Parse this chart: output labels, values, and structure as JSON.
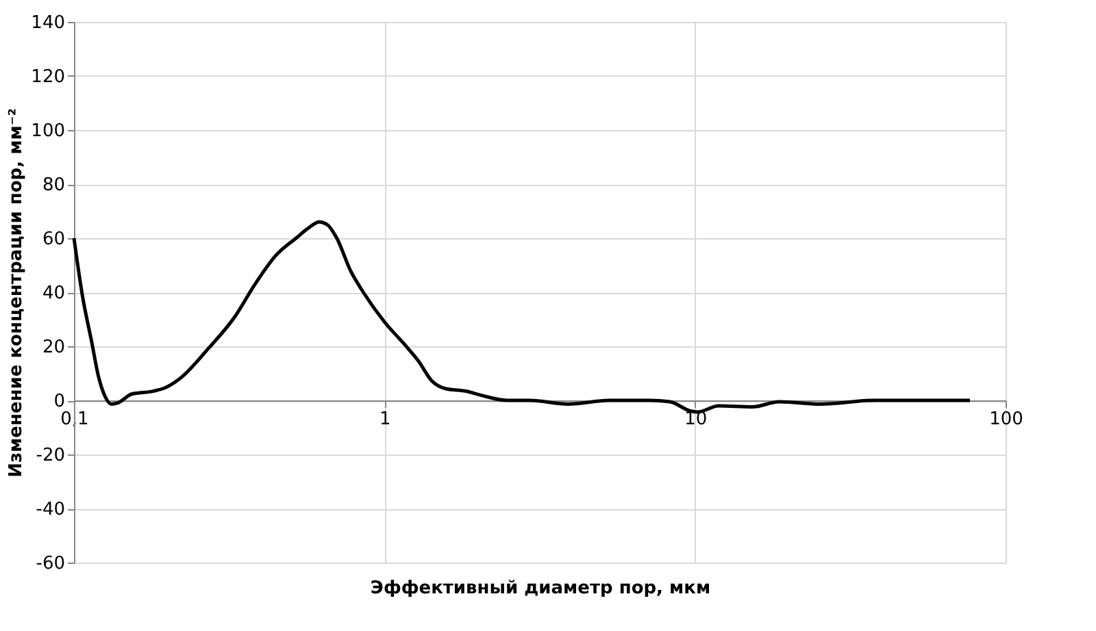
{
  "chart_data": {
    "type": "line",
    "xlabel": "Эффективный  диаметр пор, мкм",
    "ylabel": "Изменение концентрации  пор, мм⁻²",
    "log": "x",
    "grid": true,
    "marker": "none",
    "line_style": "solid",
    "xlim": [
      0.1,
      100
    ],
    "xticks": [
      {
        "value": 0.1,
        "label": "0,1"
      },
      1,
      10,
      100
    ],
    "ylim": [
      -60,
      140
    ],
    "yticks": [
      -60,
      -40,
      -20,
      0,
      20,
      40,
      60,
      80,
      100,
      120,
      140
    ],
    "x": [
      0.1,
      0.1065,
      0.114,
      0.12,
      0.126,
      0.132,
      0.138,
      0.154,
      0.18,
      0.198,
      0.22,
      0.27,
      0.33,
      0.383,
      0.446,
      0.519,
      0.573,
      0.616,
      0.654,
      0.702,
      0.777,
      0.86,
      1,
      1.16,
      1.287,
      1.42,
      1.575,
      1.83,
      2.03,
      2.48,
      2.94,
      3.9,
      5.3,
      7.1,
      8.3,
      9.7,
      10.2,
      11.9,
      15.3,
      18.7,
      25.3,
      37.9,
      76.8
    ],
    "series": [
      {
        "color": "#000000",
        "values": [
          60,
          38.6,
          21.7,
          8.7,
          1.4,
          -1.4,
          -1,
          2.4,
          3.4,
          4.8,
          8.2,
          19,
          31,
          43,
          53.5,
          60,
          64,
          66,
          65,
          60,
          48,
          39.5,
          29,
          20.7,
          14.5,
          7.2,
          4.3,
          3.4,
          2,
          0,
          0,
          -1.4,
          0,
          0,
          -0.5,
          -4,
          -4.3,
          -2,
          -2.4,
          -0.5,
          -1.4,
          0,
          0
        ]
      }
    ]
  }
}
